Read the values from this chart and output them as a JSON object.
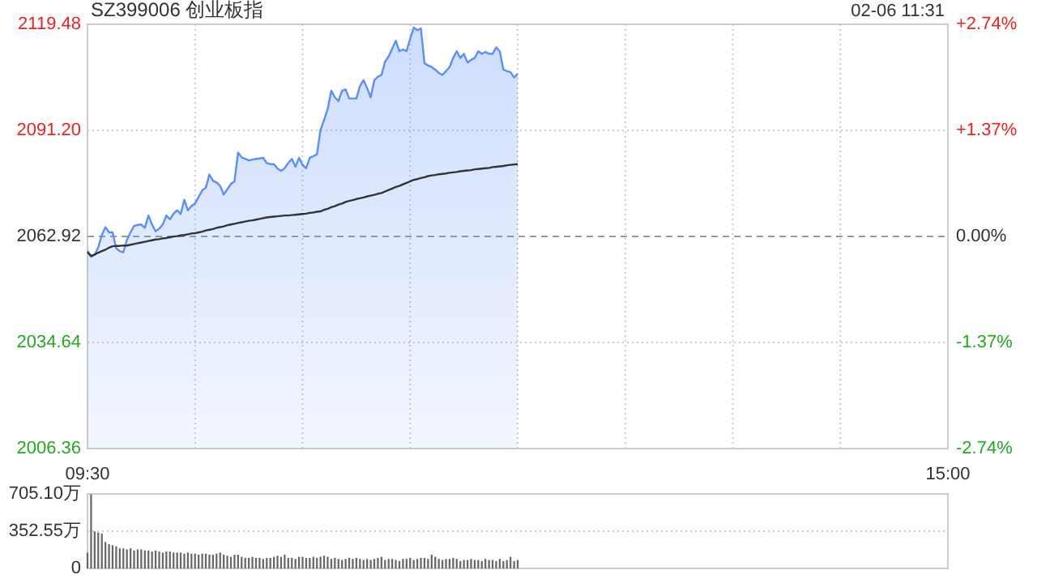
{
  "chart_data": [
    {
      "type": "area",
      "title": "SZ399006 创业板指",
      "annotations": [
        "02-06 11:31"
      ],
      "categories": [
        "09:30",
        null,
        null,
        null,
        null,
        null,
        null,
        null,
        null,
        null,
        null,
        null,
        null,
        null,
        null,
        null,
        null,
        null,
        null,
        null,
        null,
        null,
        null,
        null,
        null,
        null,
        null,
        null,
        null,
        null,
        null,
        null,
        null,
        null,
        null,
        null,
        null,
        null,
        null,
        null,
        null,
        null,
        null,
        null,
        null,
        null,
        null,
        null,
        null,
        null,
        null,
        null,
        null,
        null,
        null,
        null,
        null,
        null,
        null,
        null,
        null,
        null,
        null,
        null,
        null,
        null,
        null,
        null,
        null,
        null,
        null,
        null,
        null,
        null,
        null,
        null,
        null,
        null,
        null,
        null,
        null,
        null,
        null,
        null,
        null,
        null,
        null,
        null,
        null,
        null,
        null,
        null,
        null,
        null,
        null,
        null,
        null,
        null,
        null,
        null,
        null,
        null,
        null,
        null,
        null,
        null,
        null,
        null,
        null,
        null,
        null,
        null,
        null,
        null,
        null,
        null,
        null,
        null,
        null,
        null,
        null,
        null,
        null,
        null,
        null,
        null,
        null,
        null,
        null,
        null,
        null,
        null,
        null,
        null,
        null,
        null,
        null,
        null,
        null,
        null,
        null,
        null,
        null,
        null,
        null,
        null,
        null,
        null,
        null,
        null,
        null,
        null,
        null,
        null,
        null,
        null,
        null,
        null,
        null,
        null,
        null,
        null,
        null,
        null,
        null,
        null,
        null,
        null,
        null,
        null,
        null,
        null,
        null,
        null,
        null,
        null,
        null,
        null,
        null,
        null,
        null,
        null,
        null,
        null,
        null,
        null,
        null,
        null,
        null,
        null,
        null,
        null,
        null,
        null,
        null,
        null,
        null,
        null,
        null,
        null,
        null,
        null,
        null,
        null,
        null,
        null,
        null,
        null,
        null,
        null,
        null,
        null,
        null,
        null,
        null,
        null,
        null,
        null,
        null,
        null,
        null,
        null,
        null,
        null,
        null,
        null,
        null,
        null,
        null,
        null,
        null,
        null,
        null,
        null,
        null,
        null,
        null,
        null,
        null,
        null,
        "15:00"
      ],
      "ylim": [
        2006.36,
        2119.48
      ],
      "yticks": [
        2006.36,
        2034.64,
        2062.92,
        {
          "value": 2091.2,
          "label": "2091.20"
        },
        2119.48
      ],
      "y2lim": [
        -2.74,
        2.74
      ],
      "y2ticks": [
        {
          "value": -2.74,
          "label": "-2.74%"
        },
        {
          "value": -1.37,
          "label": "-1.37%"
        },
        {
          "value": 0,
          "label": "0.00%"
        },
        {
          "value": 1.37,
          "label": "+1.37%"
        },
        {
          "value": 2.74,
          "label": "+2.74%"
        }
      ],
      "grid": true,
      "ref_lines": [
        {
          "axis": "y2",
          "value": 0,
          "color": "#999999",
          "line_style": "dashed"
        }
      ],
      "series": [
        {
          "color": "#5b8ff9",
          "values": [
            2059.1,
            2057.5,
            2058.0,
            2060.0,
            2063.3,
            2065.4,
            2064.0,
            2064.0,
            2059.8,
            2059.0,
            2058.7,
            2062.0,
            2064.0,
            2065.7,
            2066.0,
            2066.1,
            2065.2,
            2068.5,
            2066.1,
            2064.3,
            2065.0,
            2066.1,
            2068.5,
            2067.5,
            2069.0,
            2069.9,
            2068.9,
            2072.7,
            2069.9,
            2071.0,
            2071.7,
            2073.5,
            2075.2,
            2075.9,
            2079.4,
            2077.8,
            2077.3,
            2076.4,
            2074.1,
            2075.5,
            2076.9,
            2077.6,
            2085.3,
            2084.0,
            2083.6,
            2083.2,
            2083.4,
            2083.6,
            2083.7,
            2083.9,
            2082.5,
            2082.2,
            2082.2,
            2081.0,
            2080.4,
            2081.1,
            2082.5,
            2083.6,
            2081.5,
            2083.9,
            2082.0,
            2081.1,
            2083.9,
            2084.3,
            2084.8,
            2091.3,
            2094.0,
            2096.9,
            2101.8,
            2100.0,
            2099.0,
            2101.8,
            2102.1,
            2099.7,
            2099.7,
            2099.7,
            2103.0,
            2104.6,
            2102.5,
            2100.0,
            2104.6,
            2105.5,
            2106.0,
            2109.5,
            2110.9,
            2113.0,
            2115.1,
            2112.3,
            2112.8,
            2112.3,
            2115.6,
            2118.6,
            2117.9,
            2118.4,
            2109.1,
            2108.5,
            2108.1,
            2107.4,
            2106.5,
            2106.0,
            2107.0,
            2108.1,
            2110.5,
            2112.3,
            2110.5,
            2111.6,
            2109.3,
            2110.0,
            2110.5,
            2112.3,
            2111.6,
            2112.1,
            2111.6,
            2111.6,
            2113.3,
            2112.3,
            2107.4,
            2107.0,
            2106.7,
            2105.3,
            2106.3,
            null,
            null,
            null,
            null,
            null,
            null,
            null,
            null,
            null,
            null,
            null,
            null,
            null,
            null,
            null,
            null,
            null,
            null,
            null,
            null,
            null,
            null,
            null,
            null,
            null,
            null,
            null,
            null,
            null,
            null,
            null,
            null,
            null,
            null,
            null,
            null,
            null,
            null,
            null,
            null,
            null,
            null,
            null,
            null,
            null,
            null,
            null,
            null,
            null,
            null,
            null,
            null,
            null,
            null,
            null,
            null,
            null,
            null,
            null,
            null,
            null,
            null,
            null,
            null,
            null,
            null,
            null,
            null,
            null,
            null,
            null,
            null,
            null,
            null,
            null,
            null,
            null,
            null,
            null,
            null,
            null,
            null,
            null,
            null,
            null,
            null,
            null,
            null,
            null,
            null,
            null,
            null,
            null,
            null,
            null,
            null,
            null,
            null,
            null,
            null,
            null,
            null,
            null,
            null,
            null,
            null,
            null,
            null,
            null,
            null,
            null,
            null,
            null,
            null,
            null,
            null,
            null,
            null,
            null,
            null
          ]
        },
        {
          "type": "line",
          "color": "#333333",
          "values": [
            2058.7,
            2057.7,
            2058.1,
            2058.6,
            2059.0,
            2059.4,
            2059.9,
            2060.3,
            2060.4,
            2060.4,
            2060.5,
            2060.5,
            2060.7,
            2060.9,
            2061.1,
            2061.3,
            2061.5,
            2061.7,
            2061.9,
            2062.1,
            2062.2,
            2062.4,
            2062.5,
            2062.7,
            2062.9,
            2063.0,
            2063.2,
            2063.3,
            2063.5,
            2063.7,
            2063.8,
            2064.0,
            2064.2,
            2064.5,
            2064.7,
            2064.9,
            2065.2,
            2065.4,
            2065.6,
            2065.9,
            2066.1,
            2066.3,
            2066.5,
            2066.7,
            2066.9,
            2067.1,
            2067.2,
            2067.4,
            2067.6,
            2067.8,
            2068.0,
            2068.1,
            2068.2,
            2068.3,
            2068.4,
            2068.5,
            2068.5,
            2068.6,
            2068.7,
            2068.8,
            2068.9,
            2069.0,
            2069.2,
            2069.3,
            2069.5,
            2069.6,
            2070.0,
            2070.3,
            2070.7,
            2071.0,
            2071.4,
            2071.7,
            2072.1,
            2072.4,
            2072.6,
            2072.9,
            2073.1,
            2073.3,
            2073.6,
            2073.8,
            2074.0,
            2074.3,
            2074.5,
            2074.9,
            2075.3,
            2075.7,
            2076.1,
            2076.4,
            2076.8,
            2077.2,
            2077.6,
            2078.0,
            2078.2,
            2078.5,
            2078.7,
            2079.0,
            2079.2,
            2079.3,
            2079.5,
            2079.6,
            2079.7,
            2079.9,
            2080.0,
            2080.1,
            2080.3,
            2080.4,
            2080.5,
            2080.6,
            2080.8,
            2080.9,
            2081.0,
            2081.1,
            2081.2,
            2081.4,
            2081.5,
            2081.6,
            2081.7,
            2081.9,
            2082.0,
            2082.1,
            2082.2,
            null,
            null,
            null,
            null,
            null,
            null,
            null,
            null,
            null,
            null,
            null,
            null,
            null,
            null,
            null,
            null,
            null,
            null,
            null,
            null,
            null,
            null,
            null,
            null,
            null,
            null,
            null,
            null,
            null,
            null,
            null,
            null,
            null,
            null,
            null,
            null,
            null,
            null,
            null,
            null,
            null,
            null,
            null,
            null,
            null,
            null,
            null,
            null,
            null,
            null,
            null,
            null,
            null,
            null,
            null,
            null,
            null,
            null,
            null,
            null,
            null,
            null,
            null,
            null,
            null,
            null,
            null,
            null,
            null,
            null,
            null,
            null,
            null,
            null,
            null,
            null,
            null,
            null,
            null,
            null,
            null,
            null,
            null,
            null,
            null,
            null,
            null,
            null,
            null,
            null,
            null,
            null,
            null,
            null,
            null,
            null,
            null,
            null,
            null,
            null,
            null,
            null,
            null,
            null,
            null,
            null,
            null,
            null,
            null,
            null,
            null,
            null,
            null,
            null,
            null,
            null,
            null,
            null,
            null,
            null
          ]
        }
      ]
    },
    {
      "type": "bar",
      "ylim": [
        0,
        705.1
      ],
      "categories": [
        null,
        null,
        null,
        null,
        null,
        null,
        null,
        null,
        null,
        null,
        null,
        null,
        null,
        null,
        null,
        null,
        null,
        null,
        null,
        null,
        null,
        null,
        null,
        null,
        null,
        null,
        null,
        null,
        null,
        null,
        null,
        null,
        null,
        null,
        null,
        null,
        null,
        null,
        null,
        null,
        null,
        null,
        null,
        null,
        null,
        null,
        null,
        null,
        null,
        null,
        null,
        null,
        null,
        null,
        null,
        null,
        null,
        null,
        null,
        null,
        null,
        null,
        null,
        null,
        null,
        null,
        null,
        null,
        null,
        null,
        null,
        null,
        null,
        null,
        null,
        null,
        null,
        null,
        null,
        null,
        null,
        null,
        null,
        null,
        null,
        null,
        null,
        null,
        null,
        null,
        null,
        null,
        null,
        null,
        null,
        null,
        null,
        null,
        null,
        null,
        null,
        null,
        null,
        null,
        null,
        null,
        null,
        null,
        null,
        null,
        null,
        null,
        null,
        null,
        null,
        null,
        null,
        null,
        null,
        null,
        null,
        null,
        null,
        null,
        null,
        null,
        null,
        null,
        null,
        null,
        null,
        null,
        null,
        null,
        null,
        null,
        null,
        null,
        null,
        null,
        null,
        null,
        null,
        null,
        null,
        null,
        null,
        null,
        null,
        null,
        null,
        null,
        null,
        null,
        null,
        null,
        null,
        null,
        null,
        null,
        null,
        null,
        null,
        null,
        null,
        null,
        null,
        null,
        null,
        null,
        null,
        null,
        null,
        null,
        null,
        null,
        null,
        null,
        null,
        null,
        null,
        null,
        null,
        null,
        null,
        null,
        null,
        null,
        null,
        null,
        null,
        null,
        null,
        null,
        null,
        null,
        null,
        null,
        null,
        null,
        null,
        null,
        null,
        null,
        null,
        null,
        null,
        null,
        null,
        null,
        null,
        null,
        null,
        null,
        null,
        null,
        null,
        null,
        null,
        null,
        null,
        null,
        null,
        null,
        null,
        null,
        null,
        null,
        null,
        null,
        null,
        null,
        null,
        null,
        null,
        null,
        null,
        null,
        null,
        null,
        null
      ],
      "yticks": [
        0,
        {
          "value": 352.55,
          "label": "352.55万"
        },
        {
          "value": 705.1,
          "label": "705.10万"
        }
      ],
      "grid": "y",
      "tick_labels": "y",
      "color": "#666666",
      "values": [
        150,
        700,
        350,
        340,
        330,
        250,
        230,
        220,
        210,
        190,
        190,
        180,
        190,
        170,
        180,
        180,
        170,
        170,
        160,
        170,
        160,
        150,
        160,
        160,
        150,
        150,
        150,
        140,
        150,
        140,
        140,
        130,
        140,
        140,
        130,
        130,
        140,
        150,
        130,
        120,
        110,
        130,
        130,
        110,
        100,
        100,
        110,
        100,
        100,
        90,
        100,
        100,
        110,
        120,
        110,
        130,
        100,
        100,
        90,
        110,
        110,
        100,
        100,
        110,
        100,
        110,
        120,
        110,
        90,
        100,
        90,
        80,
        90,
        100,
        90,
        100,
        90,
        80,
        90,
        80,
        90,
        100,
        110,
        80,
        90,
        90,
        80,
        70,
        90,
        90,
        100,
        80,
        90,
        100,
        100,
        90,
        130,
        110,
        90,
        80,
        90,
        90,
        100,
        90,
        70,
        80,
        80,
        90,
        80,
        80,
        70,
        90,
        80,
        80,
        70,
        90,
        70,
        80,
        110,
        70,
        80,
        null,
        null,
        null,
        null,
        null,
        null,
        null,
        null,
        null,
        null,
        null,
        null,
        null,
        null,
        null,
        null,
        null,
        null,
        null,
        null,
        null,
        null,
        null,
        null,
        null,
        null,
        null,
        null,
        null,
        null,
        null,
        null,
        null,
        null,
        null,
        null,
        null,
        null,
        null,
        null,
        null,
        null,
        null,
        null,
        null,
        null,
        null,
        null,
        null,
        null,
        null,
        null,
        null,
        null,
        null,
        null,
        null,
        null,
        null,
        null,
        null,
        null,
        null,
        null,
        null,
        null,
        null,
        null,
        null,
        null,
        null,
        null,
        null,
        null,
        null,
        null,
        null,
        null,
        null,
        null,
        null,
        null,
        null,
        null,
        null,
        null,
        null,
        null,
        null,
        null,
        null,
        null,
        null,
        null,
        null,
        null,
        null,
        null,
        null,
        null,
        null,
        null,
        null,
        null,
        null,
        null,
        null,
        null,
        null,
        null,
        null,
        null,
        null,
        null,
        null,
        null,
        null,
        null,
        null,
        null
      ]
    }
  ]
}
